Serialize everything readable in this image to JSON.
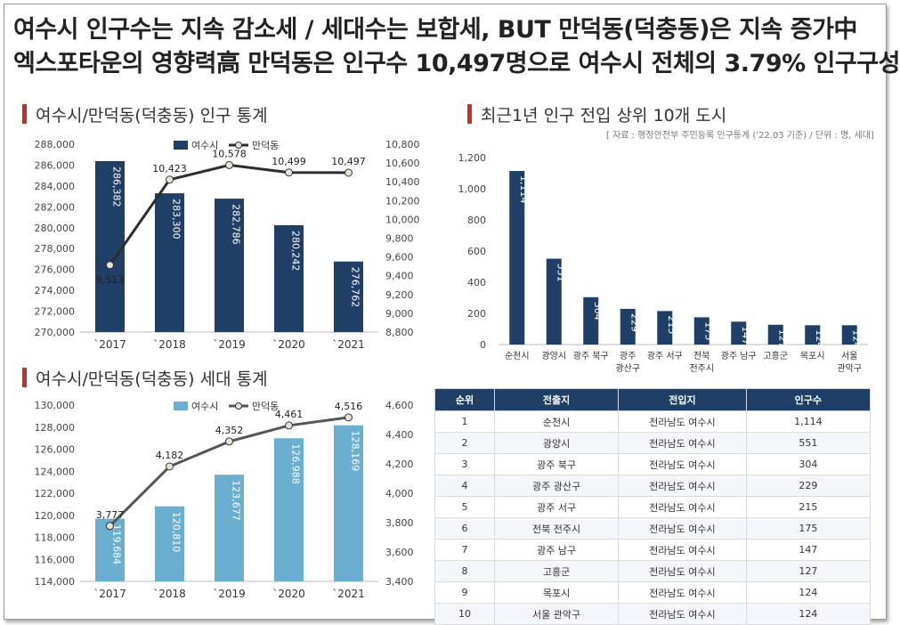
{
  "headline": {
    "line1": "여수시 인구수는 지속 감소세 / 세대수는 보합세, BUT 만덕동(덕충동)은 지속 증가中",
    "line2": "엑스포타운의 영향력高 만덕동은 인구수 10,497명으로 여수시 전체의 3.79% 인구구성"
  },
  "sections": {
    "population_title": "여수시/만덕동(덕충동) 인구 통계",
    "household_title": "여수시/만덕동(덕충동) 세대 통계",
    "migration_title": "최근1년 인구 전입 상위 10개 도시",
    "migration_source": "[ 자료 : 행정안전부 주민등록 인구통계 ('22.03 기준) / 단위 : 명, 세대]"
  },
  "colors": {
    "dark_bar": "#1f3f66",
    "light_bar": "#6aaed0",
    "line": "#555555",
    "accent": "#c0312f"
  },
  "chart_data": [
    {
      "type": "bar",
      "categories": [
        "`2017",
        "`2018",
        "`2019",
        "`2020",
        "`2021"
      ],
      "series": [
        {
          "name": "여수시",
          "type": "bar",
          "axis": "left",
          "values": [
            286382,
            283300,
            282786,
            280242,
            276762
          ],
          "value_labels": [
            "286,382",
            "283,300",
            "282,786",
            "280,242",
            "276,762"
          ]
        },
        {
          "name": "만덕동",
          "type": "line",
          "axis": "right",
          "values": [
            9513,
            10423,
            10578,
            10499,
            10497
          ],
          "value_labels": [
            "9,513",
            "10,423",
            "10,578",
            "10,499",
            "10,497"
          ]
        }
      ],
      "ylim": [
        270000,
        288000
      ],
      "yticks": [
        "270,000",
        "272,000",
        "274,000",
        "276,000",
        "278,000",
        "280,000",
        "282,000",
        "284,000",
        "286,000",
        "288,000"
      ],
      "y2lim": [
        8800,
        10800
      ],
      "y2ticks": [
        "8,800",
        "9,000",
        "9,200",
        "9,400",
        "9,600",
        "9,800",
        "10,000",
        "10,200",
        "10,400",
        "10,600",
        "10,800"
      ],
      "legend": "top"
    },
    {
      "type": "bar",
      "categories": [
        "`2017",
        "`2018",
        "`2019",
        "`2020",
        "`2021"
      ],
      "series": [
        {
          "name": "여수시",
          "type": "bar",
          "axis": "left",
          "values": [
            119684,
            120810,
            123677,
            126988,
            128169
          ],
          "value_labels": [
            "119,684",
            "120,810",
            "123,677",
            "126,988",
            "128,169"
          ]
        },
        {
          "name": "만덕동",
          "type": "line",
          "axis": "right",
          "values": [
            3777,
            4182,
            4352,
            4461,
            4516
          ],
          "value_labels": [
            "3,777",
            "4,182",
            "4,352",
            "4,461",
            "4,516"
          ]
        }
      ],
      "ylim": [
        114000,
        130000
      ],
      "yticks": [
        "114,000",
        "116,000",
        "118,000",
        "120,000",
        "122,000",
        "124,000",
        "126,000",
        "128,000",
        "130,000"
      ],
      "y2lim": [
        3400,
        4600
      ],
      "y2ticks": [
        "3,400",
        "3,600",
        "3,800",
        "4,000",
        "4,200",
        "4,400",
        "4,600"
      ],
      "legend": "top"
    },
    {
      "type": "bar",
      "categories": [
        "순천시",
        "광양시",
        "광주 북구",
        "광주 광산구",
        "광주 서구",
        "전북 전주시",
        "광주 남구",
        "고흥군",
        "목포시",
        "서울 관악구"
      ],
      "category_lines": [
        [
          "순천시"
        ],
        [
          "광양시"
        ],
        [
          "광주 북구"
        ],
        [
          "광주",
          "광산구"
        ],
        [
          "광주 서구"
        ],
        [
          "전북",
          "전주시"
        ],
        [
          "광주 남구"
        ],
        [
          "고흥군"
        ],
        [
          "목포시"
        ],
        [
          "서울",
          "관악구"
        ]
      ],
      "values": [
        1114,
        551,
        304,
        229,
        215,
        175,
        147,
        127,
        124,
        124
      ],
      "value_labels": [
        "1,114",
        "551",
        "304",
        "229",
        "215",
        "175",
        "147",
        "127",
        "124",
        "124"
      ],
      "ylim": [
        0,
        1200
      ],
      "yticks": [
        "0",
        "200",
        "400",
        "600",
        "800",
        "1,000",
        "1,200"
      ]
    },
    {
      "type": "table",
      "columns": [
        "순위",
        "전출지",
        "전입지",
        "인구수"
      ],
      "rows": [
        [
          "1",
          "순천시",
          "전라남도 여수시",
          "1,114"
        ],
        [
          "2",
          "광양시",
          "전라남도 여수시",
          "551"
        ],
        [
          "3",
          "광주 북구",
          "전라남도 여수시",
          "304"
        ],
        [
          "4",
          "광주 광산구",
          "전라남도 여수시",
          "229"
        ],
        [
          "5",
          "광주 서구",
          "전라남도 여수시",
          "215"
        ],
        [
          "6",
          "전북 전주시",
          "전라남도 여수시",
          "175"
        ],
        [
          "7",
          "광주 남구",
          "전라남도 여수시",
          "147"
        ],
        [
          "8",
          "고흥군",
          "전라남도 여수시",
          "127"
        ],
        [
          "9",
          "목포시",
          "전라남도 여수시",
          "124"
        ],
        [
          "10",
          "서울 관악구",
          "전라남도 여수시",
          "124"
        ]
      ]
    }
  ]
}
